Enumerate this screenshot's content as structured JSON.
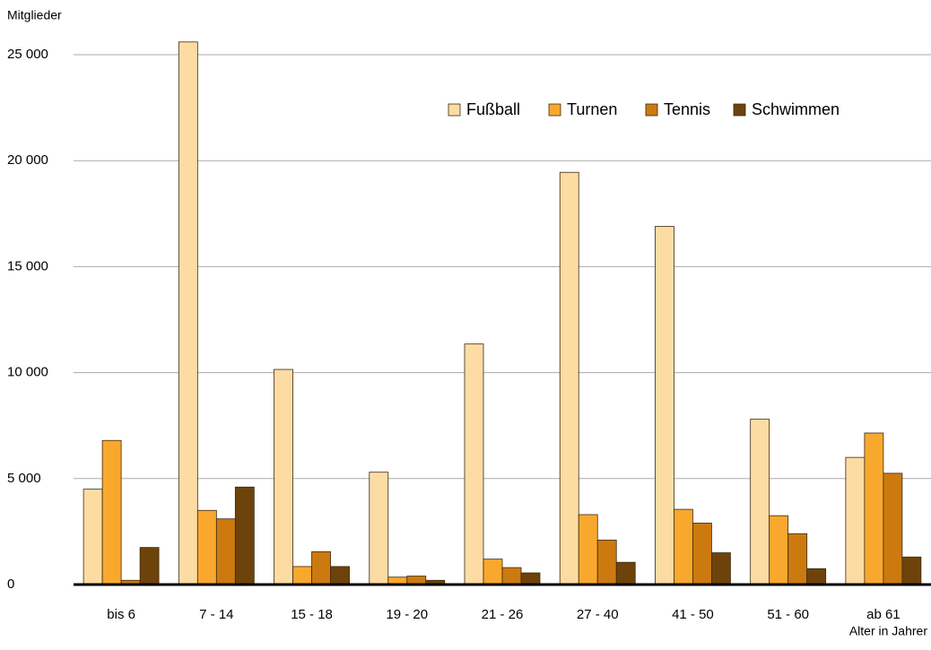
{
  "chart_data": {
    "type": "bar",
    "y_label": "Mitglieder",
    "x_label": "Alter in Jahrer",
    "categories": [
      "bis 6",
      "7 - 14",
      "15 - 18",
      "19 - 20",
      "21 - 26",
      "27 - 40",
      "41 - 50",
      "51 - 60",
      "ab 61"
    ],
    "series": [
      {
        "name": "Fußball",
        "color": "#fddca4",
        "values": [
          4500,
          25600,
          10150,
          5300,
          11350,
          19450,
          16900,
          7800,
          6000
        ]
      },
      {
        "name": "Turnen",
        "color": "#f9a82e",
        "values": [
          6800,
          3500,
          850,
          350,
          1200,
          3300,
          3550,
          3250,
          7150
        ]
      },
      {
        "name": "Tennis",
        "color": "#cc7a10",
        "values": [
          200,
          3100,
          1550,
          400,
          800,
          2100,
          2900,
          2400,
          5250
        ]
      },
      {
        "name": "Schwimmen",
        "color": "#6e430b",
        "values": [
          1750,
          4600,
          850,
          200,
          550,
          1050,
          1500,
          750,
          1300
        ]
      }
    ],
    "ylim": [
      0,
      25000
    ],
    "yticks": [
      0,
      {
        "value": 5000,
        "label": "5 000"
      },
      {
        "value": 10000,
        "label": "10 000"
      },
      {
        "value": 15000,
        "label": "15 000"
      },
      {
        "value": 20000,
        "label": "20 000"
      },
      {
        "value": 25000,
        "label": "25 000"
      }
    ],
    "grid": true,
    "legend": "upper right"
  }
}
